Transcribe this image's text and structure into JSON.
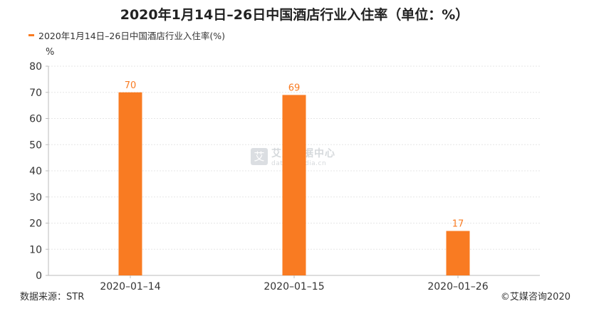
{
  "title": "2020年1月14日–26日中国酒店行业入住率（单位：%）",
  "unit_label": "%",
  "source": "数据来源：STR",
  "copyright": "©艾媒咨询2020",
  "watermark": {
    "badge": "艾",
    "name": "艾媒数据中心",
    "url": "data.iimedia.cn"
  },
  "colors": {
    "bar": "#f97b22",
    "label": "#f97b22",
    "axis": "#bbbbbb",
    "grid": "#e6e6e6"
  },
  "chart_data": {
    "type": "bar",
    "categories": [
      "2020–01–14",
      "2020–01–15",
      "2020–01–26"
    ],
    "series": [
      {
        "name": "2020年1月14日–26日中国酒店行业入住率(%)",
        "values": [
          70,
          69,
          17
        ]
      }
    ],
    "data_labels": [
      "70",
      "69",
      "17"
    ],
    "yticks": [
      "0",
      "10",
      "20",
      "30",
      "40",
      "50",
      "60",
      "70",
      "80"
    ],
    "ylim": [
      0,
      80
    ],
    "grid": true,
    "legend_position": "top-left"
  }
}
